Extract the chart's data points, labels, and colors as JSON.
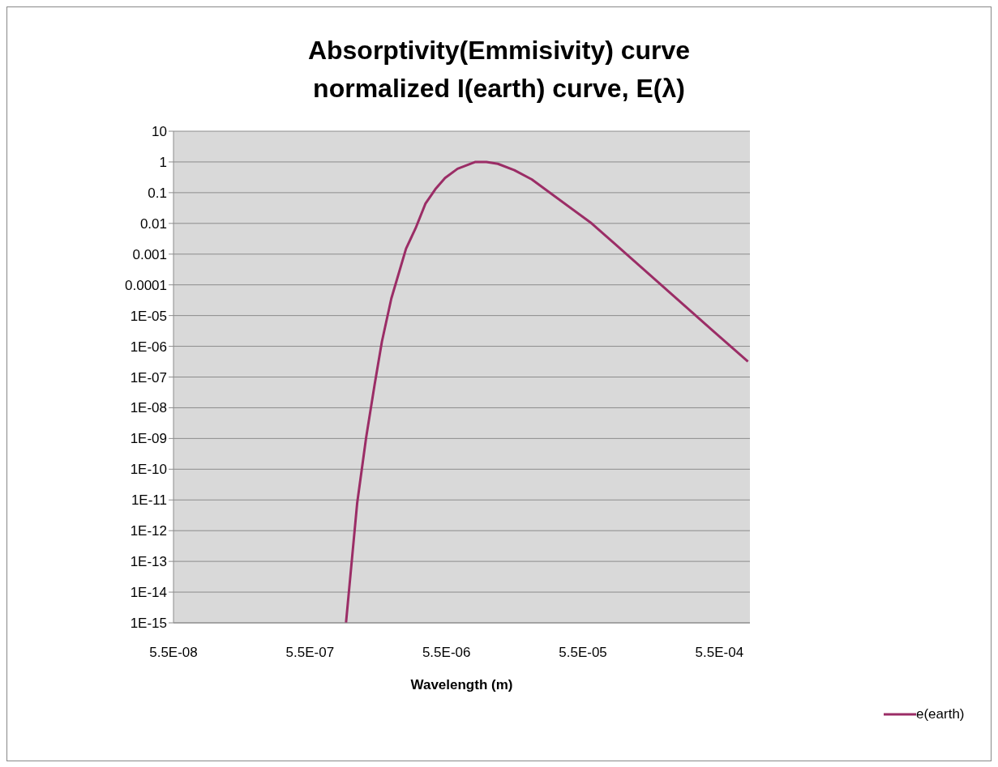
{
  "chart_data": {
    "type": "line",
    "title": "Absorptivity(Emmisivity) curve\nnormalized I(earth) curve, E(λ)",
    "xlabel": "Wavelength (m)",
    "series": [
      {
        "name": "e(earth)",
        "color": "#9b2d66",
        "x": [
          1.01e-06,
          1.22e-06,
          1.42e-06,
          1.64e-06,
          1.85e-06,
          2.17e-06,
          2.78e-06,
          3.27e-06,
          3.86e-06,
          4.56e-06,
          5.37e-06,
          6.63e-06,
          8.97e-06,
          1.08e-05,
          1.31e-05,
          1.73e-05,
          2.32e-05,
          6.37e-05,
          0.000123,
          0.000249,
          0.0005,
          0.00089
        ],
        "values": [
          1e-15,
          8e-12,
          1.1e-09,
          6e-08,
          1.4e-06,
          3.6e-05,
          0.0015,
          0.007,
          0.044,
          0.13,
          0.3,
          0.6,
          1,
          1,
          0.87,
          0.54,
          0.27,
          0.01,
          0.00076,
          4.7e-05,
          3e-06,
          3.2e-07
        ]
      }
    ],
    "log": "xy",
    "xlim": [
      5.5e-08,
      0.00092
    ],
    "ylim": [
      1e-15,
      10
    ],
    "xticks": [
      {
        "value": 5.5e-08,
        "label": "5.5E-08"
      },
      {
        "value": 5.5e-07,
        "label": "5.5E-07"
      },
      {
        "value": 5.5e-06,
        "label": "5.5E-06"
      },
      {
        "value": 5.5e-05,
        "label": "5.5E-05"
      },
      {
        "value": 0.00055,
        "label": "5.5E-04"
      }
    ],
    "yticks": [
      10,
      1,
      0.1,
      0.01,
      0.001,
      0.0001,
      {
        "value": 1e-05,
        "label": "1E-05"
      },
      {
        "value": 1e-06,
        "label": "1E-06"
      },
      {
        "value": 1e-07,
        "label": "1E-07"
      },
      {
        "value": 1e-08,
        "label": "1E-08"
      },
      {
        "value": 1e-09,
        "label": "1E-09"
      },
      {
        "value": 1e-10,
        "label": "1E-10"
      },
      {
        "value": 1e-11,
        "label": "1E-11"
      },
      {
        "value": 1e-12,
        "label": "1E-12"
      },
      {
        "value": 1e-13,
        "label": "1E-13"
      },
      {
        "value": 1e-14,
        "label": "1E-14"
      },
      {
        "value": 1e-15,
        "label": "1E-15"
      }
    ],
    "grid": "y",
    "legend": "right",
    "marker": "none",
    "line_style": "solid"
  }
}
